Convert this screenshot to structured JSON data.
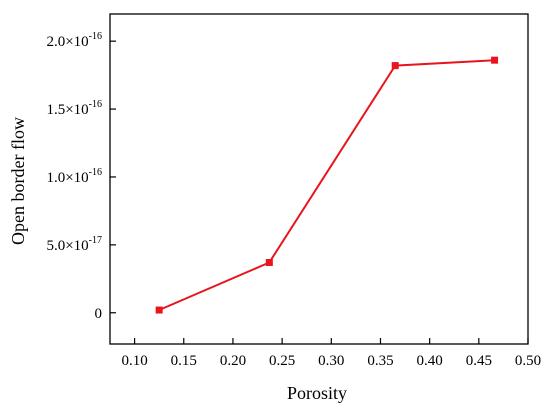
{
  "chart_data": {
    "type": "line",
    "xlabel": "Porosity",
    "ylabel": "Open border flow",
    "xlim": [
      0.075,
      0.5
    ],
    "ylim": [
      -2.3e-17,
      2.2e-16
    ],
    "x_ticks": [
      0.1,
      0.15,
      0.2,
      0.25,
      0.3,
      0.35,
      0.4,
      0.45,
      0.5
    ],
    "x_tick_labels": [
      "0.10",
      "0.15",
      "0.20",
      "0.25",
      "0.30",
      "0.35",
      "0.40",
      "0.45",
      "0.50"
    ],
    "y_ticks": [
      {
        "value": 0,
        "mantissa": "0",
        "exponent": ""
      },
      {
        "value": 5e-17,
        "mantissa": "5.0×10",
        "exponent": "-17"
      },
      {
        "value": 1e-16,
        "mantissa": "1.0×10",
        "exponent": "-16"
      },
      {
        "value": 1.5e-16,
        "mantissa": "1.5×10",
        "exponent": "-16"
      },
      {
        "value": 2e-16,
        "mantissa": "2.0×10",
        "exponent": "-16"
      }
    ],
    "series": [
      {
        "color": "#e8141e",
        "marker": "square",
        "points": [
          {
            "x": 0.125,
            "y": 2e-18
          },
          {
            "x": 0.237,
            "y": 3.7e-17
          },
          {
            "x": 0.365,
            "y": 1.82e-16
          },
          {
            "x": 0.466,
            "y": 1.86e-16
          }
        ]
      }
    ],
    "grid": false,
    "legend": "none"
  }
}
